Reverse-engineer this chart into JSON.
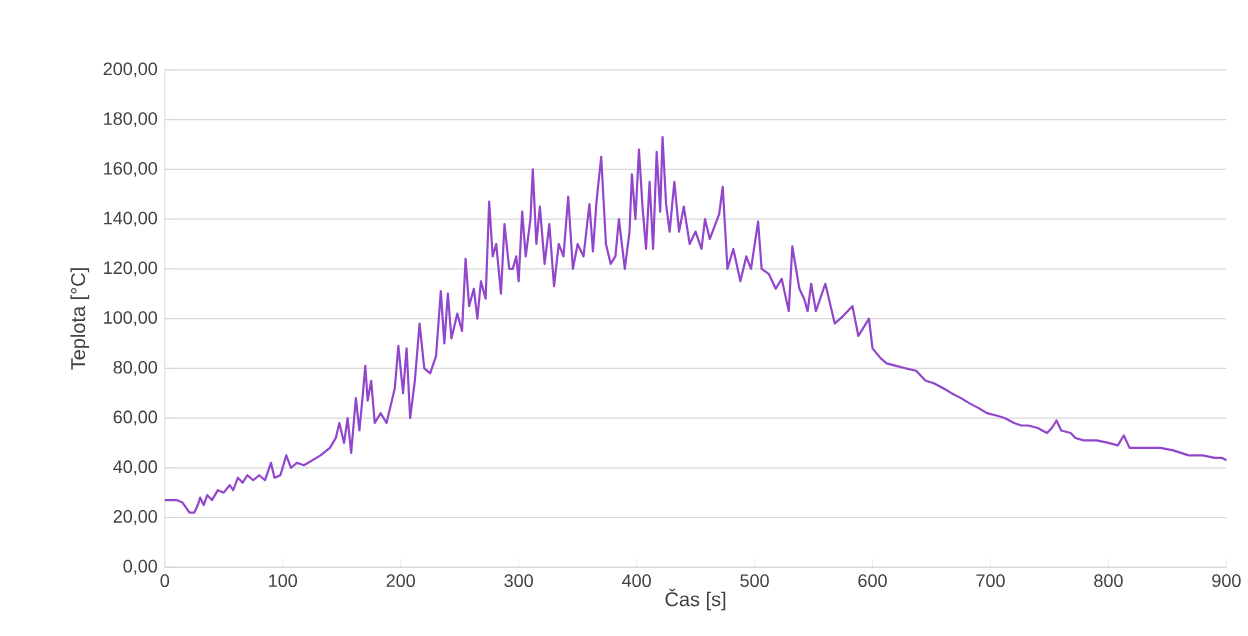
{
  "chart_data": {
    "type": "line",
    "xlabel": "Čas [s]",
    "ylabel": "Teplota [°C]",
    "xlim": [
      0,
      900
    ],
    "xticks": [
      0,
      100,
      200,
      300,
      400,
      500,
      600,
      700,
      800,
      900
    ],
    "ylim": [
      0,
      200
    ],
    "yticks": [
      {
        "value": 0,
        "label": "0,00"
      },
      {
        "value": 20,
        "label": "20,00"
      },
      {
        "value": 40,
        "label": "40,00"
      },
      {
        "value": 60,
        "label": "60,00"
      },
      {
        "value": 80,
        "label": "80,00"
      },
      {
        "value": 100,
        "label": "100,00"
      },
      {
        "value": 120,
        "label": "120,00"
      },
      {
        "value": 140,
        "label": "140,00"
      },
      {
        "value": 160,
        "label": "160,00"
      },
      {
        "value": 180,
        "label": "180,00"
      },
      {
        "value": 200,
        "label": "200,00"
      }
    ],
    "grid": "y",
    "marker": "none",
    "line_style": "solid",
    "series": [
      {
        "color": "#9146cc",
        "x": [
          0,
          10,
          15,
          21,
          25,
          28,
          30,
          33,
          36,
          40,
          45,
          50,
          55,
          58,
          62,
          66,
          70,
          75,
          80,
          85,
          90,
          93,
          98,
          103,
          107,
          112,
          118,
          125,
          132,
          140,
          145,
          148,
          152,
          155,
          158,
          162,
          165,
          168,
          170,
          172,
          175,
          178,
          183,
          188,
          195,
          198,
          202,
          205,
          208,
          212,
          216,
          220,
          225,
          230,
          234,
          237,
          240,
          243,
          248,
          252,
          255,
          258,
          262,
          265,
          268,
          272,
          275,
          278,
          281,
          285,
          288,
          292,
          295,
          298,
          300,
          303,
          306,
          310,
          312,
          315,
          318,
          322,
          326,
          330,
          334,
          338,
          342,
          346,
          350,
          355,
          360,
          363,
          366,
          370,
          374,
          378,
          382,
          385,
          390,
          394,
          396,
          399,
          402,
          405,
          408,
          411,
          414,
          417,
          420,
          422,
          425,
          428,
          432,
          436,
          440,
          445,
          450,
          455,
          458,
          462,
          466,
          470,
          473,
          477,
          482,
          488,
          493,
          497,
          503,
          506,
          512,
          518,
          523,
          529,
          532,
          538,
          542,
          545,
          548,
          552,
          560,
          568,
          575,
          583,
          588,
          597,
          600,
          607,
          612,
          620,
          628,
          637,
          645,
          652,
          660,
          667,
          675,
          682,
          690,
          697,
          705,
          712,
          720,
          726,
          732,
          740,
          748,
          752,
          756,
          760,
          768,
          772,
          779,
          790,
          800,
          808,
          813,
          818,
          830,
          844,
          855,
          868,
          880,
          890,
          896,
          900
        ],
        "values": [
          27,
          27,
          26,
          22,
          22,
          25,
          28,
          25,
          29,
          27,
          31,
          30,
          33,
          31,
          36,
          34,
          37,
          35,
          37,
          35,
          42,
          36,
          37,
          45,
          40,
          42,
          41,
          43,
          45,
          48,
          52,
          58,
          50,
          60,
          46,
          68,
          55,
          70,
          81,
          67,
          75,
          58,
          62,
          58,
          72,
          89,
          70,
          88,
          60,
          75,
          98,
          80,
          78,
          85,
          111,
          90,
          110,
          92,
          102,
          95,
          124,
          105,
          112,
          100,
          115,
          108,
          147,
          125,
          130,
          110,
          138,
          120,
          120,
          125,
          115,
          143,
          125,
          140,
          160,
          130,
          145,
          122,
          138,
          113,
          130,
          125,
          149,
          120,
          130,
          125,
          146,
          127,
          147,
          165,
          130,
          122,
          125,
          140,
          120,
          135,
          158,
          140,
          168,
          145,
          128,
          155,
          128,
          167,
          143,
          173,
          146,
          135,
          155,
          135,
          145,
          130,
          135,
          128,
          140,
          132,
          137,
          142,
          153,
          120,
          128,
          115,
          125,
          120,
          139,
          120,
          118,
          112,
          116,
          103,
          129,
          112,
          108,
          103,
          114,
          103,
          114,
          98,
          101,
          105,
          93,
          100,
          88,
          84,
          82,
          81,
          80,
          79,
          75,
          74,
          72,
          70,
          68,
          66,
          64,
          62,
          61,
          60,
          58,
          57,
          57,
          56,
          54,
          56,
          59,
          55,
          54,
          52,
          51,
          51,
          50,
          49,
          53,
          48,
          48,
          48,
          47,
          45,
          45,
          44,
          44,
          43
        ]
      }
    ]
  }
}
